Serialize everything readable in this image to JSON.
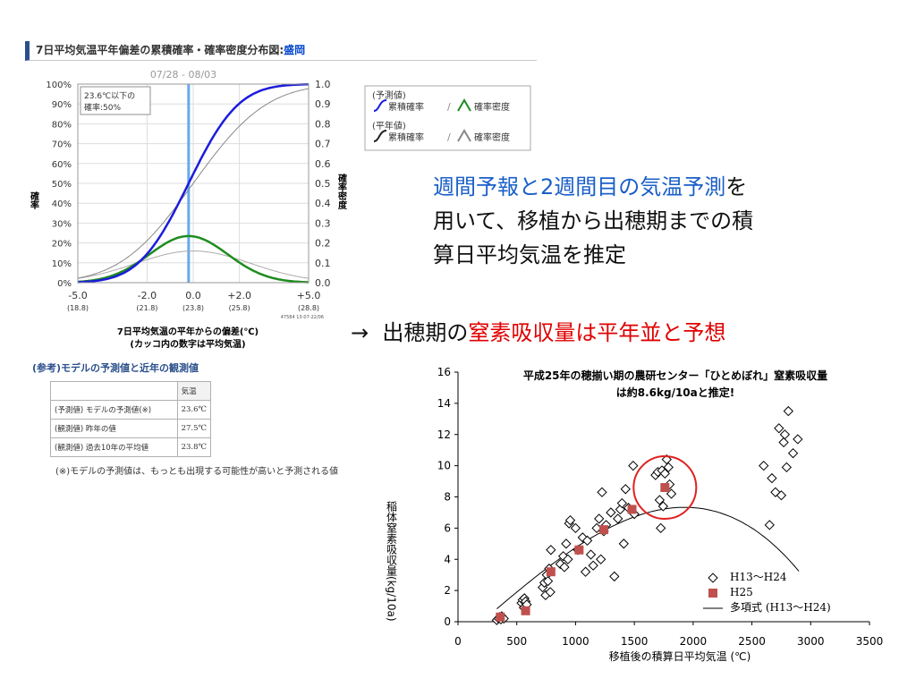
{
  "left_panel": {
    "title_prefix": "7日平均気温平年偏差の累積確率・確率密度分布図:",
    "title_location": "盛岡",
    "period": "07/28 - 08/03",
    "inset_line1": "23.6℃以下の",
    "inset_line2": "確率:50%",
    "ylabel_left": "確率",
    "ylabel_right": "確率密度",
    "xlabel_line1": "7日平均気温の平年からの偏差(℃)",
    "xlabel_line2": "(カッコ内の数字は平均気温)",
    "footer_code": "47584 13-07-22/06",
    "legend": {
      "forecast_header": "(予測値)",
      "normal_header": "(平年値)",
      "cumulative_label": "累積確率",
      "density_label": "確率密度",
      "separator": "/"
    },
    "reference": {
      "title": "(参考)モデルの予測値と近年の観測値",
      "column_header": "気温",
      "rows": [
        {
          "label": "(予測値) モデルの予測値(※)",
          "value": "23.6℃"
        },
        {
          "label": "(観測値) 昨年の値",
          "value": "27.5℃"
        },
        {
          "label": "(観測値) 過去10年の平均値",
          "value": "23.8℃"
        }
      ],
      "note": "(※)モデルの予測値は、もっとも出現する可能性が高いと予測される値"
    },
    "colors": {
      "forecast_cumulative": "#1c1cdc",
      "forecast_density": "#1e8c1e",
      "normal": "#888888",
      "marker": "#66aaee"
    },
    "chart_data": {
      "type": "line",
      "x_ticks": [
        "-5.0",
        "-2.0",
        "0.0",
        "+2.0",
        "+5.0"
      ],
      "x_tick_values": [
        -5,
        -2,
        0,
        2,
        5
      ],
      "x_sub_ticks": [
        "(18.8)",
        "(21.8)",
        "(23.8)",
        "(25.8)",
        "(28.8)"
      ],
      "xlim": [
        -5,
        5
      ],
      "ylim_left": [
        0,
        100
      ],
      "ylim_right": [
        0,
        1
      ],
      "y_ticks_left": [
        "0%",
        "10%",
        "20%",
        "30%",
        "40%",
        "50%",
        "60%",
        "70%",
        "80%",
        "90%",
        "100%"
      ],
      "y_ticks_right": [
        "0.0",
        "0.1",
        "0.2",
        "0.3",
        "0.4",
        "0.5",
        "0.6",
        "0.7",
        "0.8",
        "0.9",
        "1.0"
      ],
      "marker_x": -0.2,
      "series": [
        {
          "kind": "forecast_cumulative",
          "mean": -0.2,
          "sd": 1.7
        },
        {
          "kind": "forecast_density",
          "mean": -0.2,
          "sd": 1.7
        },
        {
          "kind": "normal_cumulative",
          "mean": 0,
          "sd": 2.5
        },
        {
          "kind": "normal_density",
          "mean": 0,
          "sd": 2.5
        }
      ]
    }
  },
  "main_text": {
    "line1_blue": "週間予報と2週間目の気温予測",
    "line1_rest": "を",
    "line2": "用いて、移植から出穂期までの積",
    "line3": "算日平均気温を推定"
  },
  "conclusion": {
    "arrow": "→",
    "prefix": "出穂期の",
    "highlight": "窒素吸収量は平年並と予想"
  },
  "right_chart": {
    "title_line1": "平成25年の穂揃い期の農研センター「ひとめぼれ」窒素吸収量",
    "title_line2": "は約8.6kg/10aと推定!",
    "legend": {
      "h13_h24": "H13〜H24",
      "h25": "H25",
      "poly": "多項式 (H13〜H24)"
    },
    "colors": {
      "h25": "#c0504d",
      "circle": "#e02020"
    },
    "chart_data": {
      "type": "scatter",
      "xlabel": "移植後の積算日平均気温 (℃)",
      "ylabel": "稲体窒素吸収量(kg/10a)",
      "xlim": [
        0,
        3500
      ],
      "ylim": [
        0,
        16
      ],
      "x_ticks": [
        0,
        500,
        1000,
        1500,
        2000,
        2500,
        3000,
        3500
      ],
      "y_ticks": [
        0,
        2,
        4,
        6,
        8,
        10,
        12,
        14,
        16
      ],
      "highlight_point": [
        1760,
        8.6
      ],
      "series": [
        {
          "name": "H13〜H24",
          "points": [
            [
              330,
              0.1
            ],
            [
              345,
              0.2
            ],
            [
              355,
              0.3
            ],
            [
              365,
              0.15
            ],
            [
              372,
              0.35
            ],
            [
              390,
              0.2
            ],
            [
              540,
              1.2
            ],
            [
              550,
              1.4
            ],
            [
              560,
              0.9
            ],
            [
              565,
              1.5
            ],
            [
              575,
              1.3
            ],
            [
              585,
              1.1
            ],
            [
              720,
              2.2
            ],
            [
              735,
              2.5
            ],
            [
              745,
              1.7
            ],
            [
              755,
              3.0
            ],
            [
              765,
              2.6
            ],
            [
              775,
              3.4
            ],
            [
              785,
              1.9
            ],
            [
              790,
              4.6
            ],
            [
              870,
              3.7
            ],
            [
              895,
              4.2
            ],
            [
              905,
              3.5
            ],
            [
              920,
              5.0
            ],
            [
              935,
              4.0
            ],
            [
              945,
              6.3
            ],
            [
              955,
              6.5
            ],
            [
              1000,
              6.0
            ],
            [
              1020,
              4.6
            ],
            [
              1060,
              5.4
            ],
            [
              1085,
              3.2
            ],
            [
              1100,
              5.2
            ],
            [
              1130,
              4.3
            ],
            [
              1150,
              3.6
            ],
            [
              1180,
              6.0
            ],
            [
              1200,
              6.6
            ],
            [
              1215,
              4.0
            ],
            [
              1225,
              8.3
            ],
            [
              1240,
              5.8
            ],
            [
              1260,
              6.2
            ],
            [
              1300,
              7.0
            ],
            [
              1330,
              2.9
            ],
            [
              1360,
              6.6
            ],
            [
              1380,
              7.2
            ],
            [
              1395,
              7.6
            ],
            [
              1410,
              5.0
            ],
            [
              1425,
              8.5
            ],
            [
              1450,
              7.3
            ],
            [
              1490,
              10.0
            ],
            [
              1500,
              6.9
            ],
            [
              1680,
              9.4
            ],
            [
              1700,
              9.6
            ],
            [
              1715,
              7.8
            ],
            [
              1725,
              6.0
            ],
            [
              1735,
              9.7
            ],
            [
              1745,
              7.4
            ],
            [
              1760,
              9.5
            ],
            [
              1775,
              10.4
            ],
            [
              1790,
              9.9
            ],
            [
              1800,
              8.8
            ],
            [
              1815,
              8.2
            ],
            [
              2600,
              10.0
            ],
            [
              2650,
              6.2
            ],
            [
              2670,
              9.2
            ],
            [
              2700,
              8.3
            ],
            [
              2730,
              12.4
            ],
            [
              2750,
              8.1
            ],
            [
              2770,
              11.5
            ],
            [
              2780,
              12.0
            ],
            [
              2795,
              9.9
            ],
            [
              2810,
              13.5
            ],
            [
              2850,
              10.8
            ],
            [
              2890,
              11.7
            ]
          ]
        },
        {
          "name": "H25",
          "points": [
            [
              360,
              0.3
            ],
            [
              575,
              0.7
            ],
            [
              790,
              3.2
            ],
            [
              1030,
              4.6
            ],
            [
              1240,
              5.9
            ],
            [
              1480,
              7.2
            ],
            [
              1760,
              8.6
            ]
          ]
        },
        {
          "name": "多項式 (H13〜H24)",
          "coefficients": [
            -1.3,
            0.0064,
            3.33e-07,
            -6.9e-10
          ],
          "x_range": [
            330,
            2900
          ]
        }
      ]
    }
  }
}
